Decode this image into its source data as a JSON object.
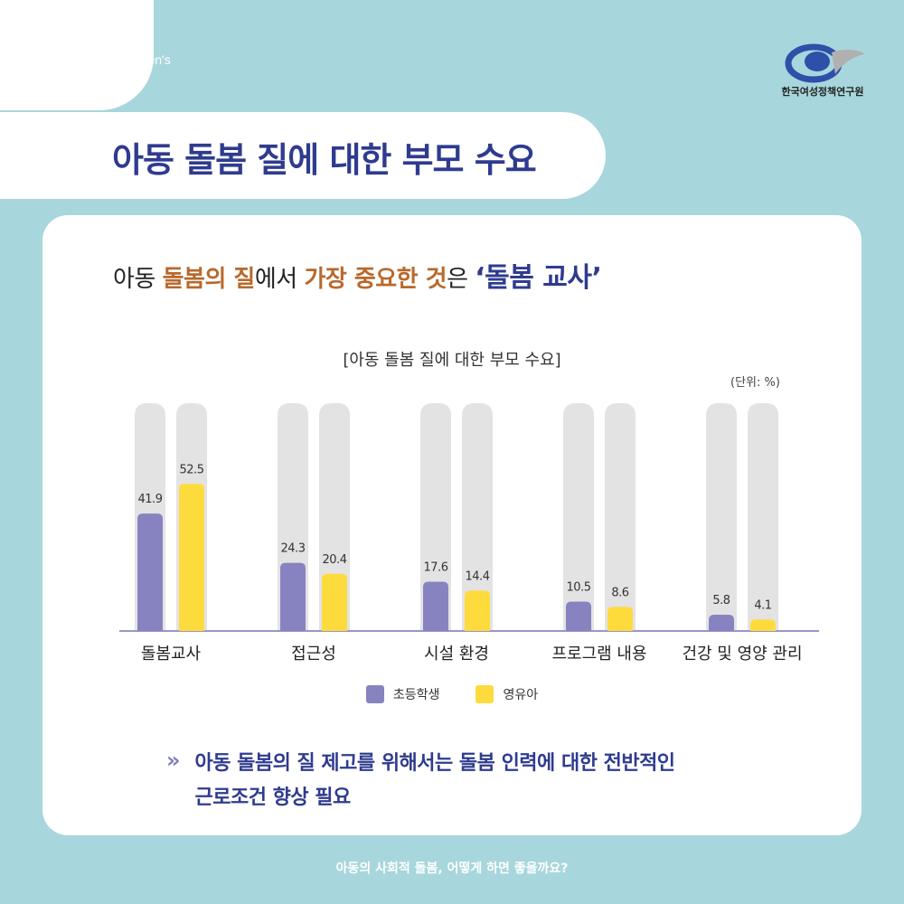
{
  "header": {
    "org_name": "Korean Women's\nDevelopment\nInstitute",
    "title": "아동 돌봄 질에 대한 부모 수요",
    "logo_icon": "kwdi-logo-icon",
    "logo_text": "한국여성정책연구원"
  },
  "subtitle": {
    "part1": "아동 ",
    "part2": "돌봄의 질",
    "part3": "에서 ",
    "part4": "가장 중요한 것",
    "part5": "은 ",
    "part6": "‘돌봄 교사’"
  },
  "chart_data": {
    "type": "bar",
    "title": "[아동 돌봄 질에 대한 부모 수요]",
    "unit": "(단위: %)",
    "categories": [
      "돌봄교사",
      "접근성",
      "시설 환경",
      "프로그램 내용",
      "건강 및 영양 관리"
    ],
    "series": [
      {
        "name": "초등학생",
        "values": [
          41.9,
          24.3,
          17.6,
          10.5,
          5.8
        ],
        "color": "#8783c0"
      },
      {
        "name": "영유아",
        "values": [
          52.5,
          20.4,
          14.4,
          8.6,
          4.1
        ],
        "color": "#fedb3c"
      }
    ],
    "ylim": [
      0,
      100
    ],
    "background_track_color": "#e3e3e3",
    "grid": false,
    "legend": "bottom"
  },
  "note": {
    "icon": "double-chevron-right-icon",
    "text": "아동 돌봄의 질 제고를 위해서는 돌봄 인력에 대한 전반적인\n근로조건 향상 필요"
  },
  "footer": {
    "text": "아동의 사회적 돌봄, 어떻게 하면 좋을까요?"
  },
  "colors": {
    "background": "#a7d6dc",
    "title_navy": "#2f3b8f",
    "highlight_brown": "#b8692d"
  }
}
